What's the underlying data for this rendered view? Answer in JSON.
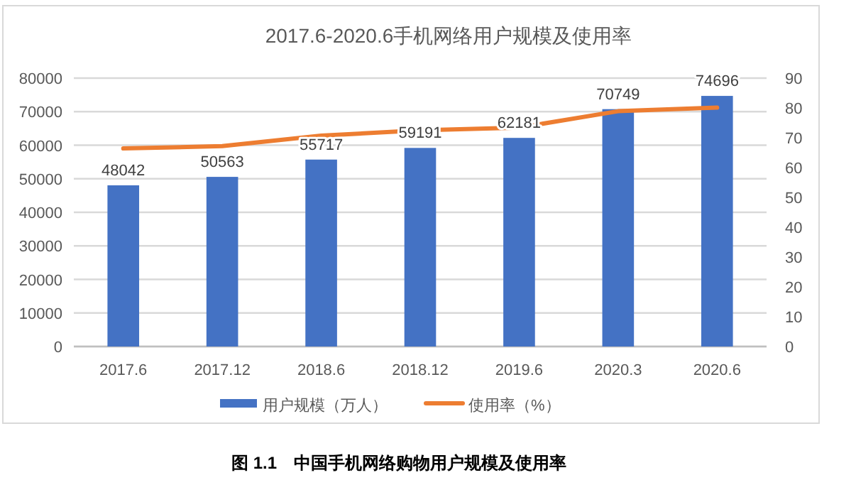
{
  "chart_data": {
    "type": "bar",
    "title": "2017.6-2020.6手机网络用户规模及使用率",
    "categories": [
      "2017.6",
      "2017.12",
      "2018.6",
      "2018.12",
      "2019.6",
      "2020.3",
      "2020.6"
    ],
    "series": [
      {
        "name": "用户规模（万人）",
        "color": "#4472c4",
        "values": [
          48042,
          50563,
          55717,
          59191,
          62181,
          70749,
          74696
        ],
        "value_labels": [
          "48042",
          "50563",
          "55717",
          "59191",
          "62181",
          "70749",
          "74696"
        ]
      },
      {
        "name": "使用率（%）",
        "type": "line",
        "axis": "y2",
        "color": "#ed7d31",
        "values": [
          66.4,
          67.2,
          70.7,
          72.5,
          73.4,
          78.9,
          80.1
        ]
      }
    ],
    "ylim": [
      0,
      80000
    ],
    "yticks": [
      0,
      10000,
      20000,
      30000,
      40000,
      50000,
      60000,
      70000,
      80000
    ],
    "y2lim": [
      0,
      90
    ],
    "y2ticks": [
      0,
      10,
      20,
      30,
      40,
      50,
      60,
      70,
      80,
      90
    ],
    "grid": "y",
    "legend": "bottom",
    "marker": "none",
    "annotations": [
      "图 1.1　中国手机网络购物用户规模及使用率"
    ]
  }
}
